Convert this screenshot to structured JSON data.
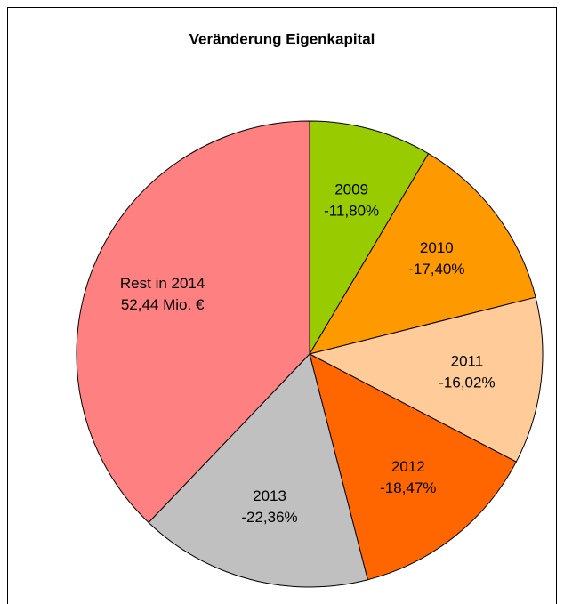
{
  "chart_data": {
    "type": "pie",
    "title": "Veränderung Eigenkapital",
    "categories": [
      "2009",
      "2010",
      "2011",
      "2012",
      "2013",
      "Rest in 2014"
    ],
    "values": [
      -11.8,
      -17.4,
      -16.02,
      -18.47,
      -22.36,
      52.44
    ],
    "value_labels": [
      "-11,80%",
      "-17,40%",
      "-16,02%",
      "-18,47%",
      "-22,36%",
      "52,44 Mio. €"
    ],
    "colors": [
      "#99cc00",
      "#ff9900",
      "#ffcc99",
      "#ff6600",
      "#c0c0c0",
      "#ff8080"
    ]
  }
}
